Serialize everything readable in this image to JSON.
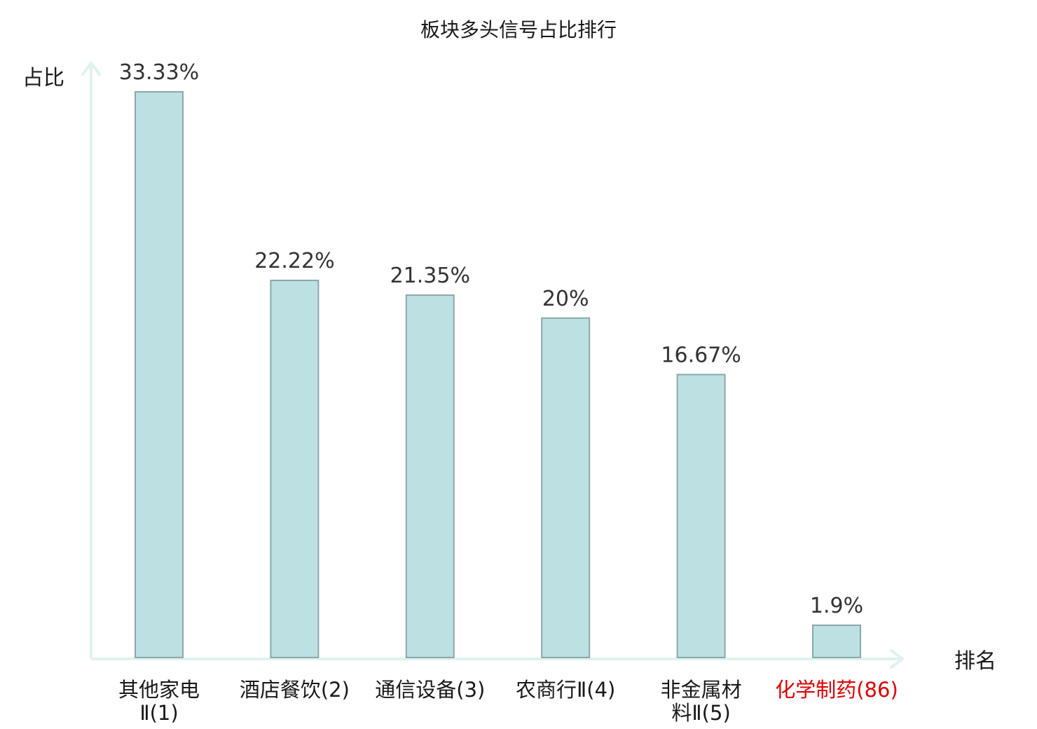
{
  "chart_data": {
    "type": "bar",
    "title": "板块多头信号占比排行",
    "ylabel": "占比",
    "xlabel": "排名",
    "ylim": [
      0,
      35
    ],
    "grid": false,
    "legend": "none",
    "categories": [
      {
        "lines": [
          "其他家电",
          "Ⅱ(1)"
        ],
        "highlight": false
      },
      {
        "lines": [
          "酒店餐饮(2)"
        ],
        "highlight": false
      },
      {
        "lines": [
          "通信设备(3)"
        ],
        "highlight": false
      },
      {
        "lines": [
          "农商行Ⅱ(4)"
        ],
        "highlight": false
      },
      {
        "lines": [
          "非金属材",
          "料Ⅱ(5)"
        ],
        "highlight": false
      },
      {
        "lines": [
          "化学制药(86)"
        ],
        "highlight": true
      }
    ],
    "values": [
      33.33,
      22.22,
      21.35,
      20,
      16.67,
      1.9
    ],
    "value_labels": [
      "33.33%",
      "22.22%",
      "21.35%",
      "20%",
      "16.67%",
      "1.9%"
    ],
    "colors": {
      "bar_fill": "#bde0e3",
      "bar_stroke": "#8aa8aa",
      "axis": "#dff2ef",
      "label_text": "#1a1a1a",
      "highlight_text": "#e00000"
    }
  }
}
